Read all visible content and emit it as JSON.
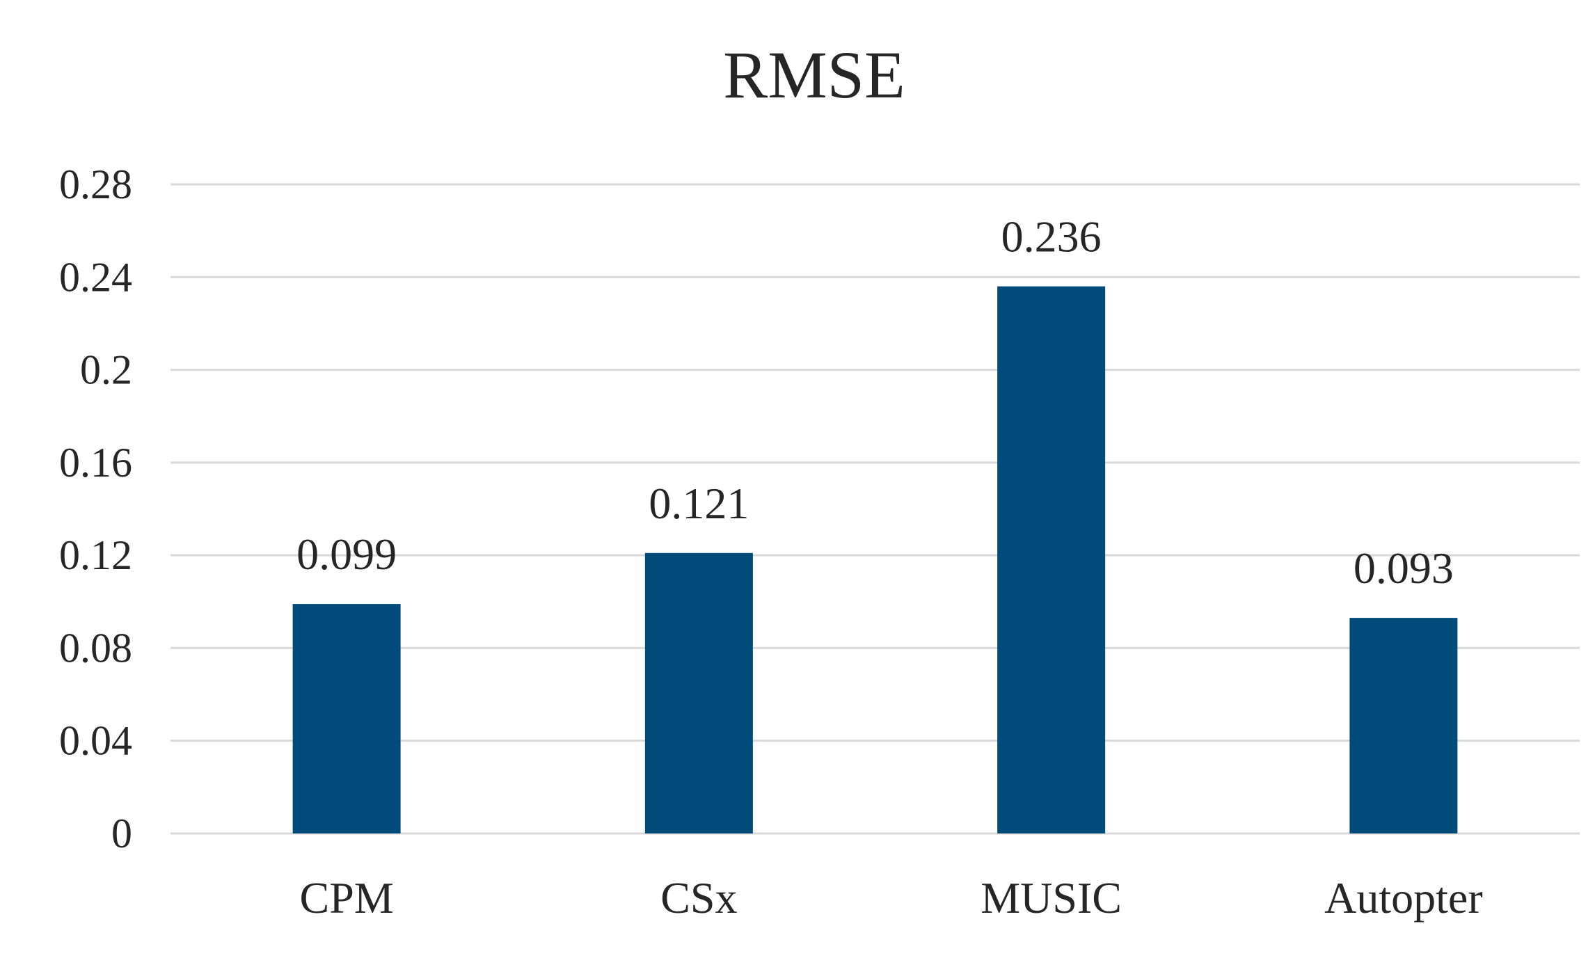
{
  "chart_data": {
    "type": "bar",
    "title": "RMSE",
    "categories": [
      "CPM",
      "CSx",
      "MUSIC",
      "Autopter"
    ],
    "values": [
      0.099,
      0.121,
      0.236,
      0.093
    ],
    "data_labels": [
      "0.099",
      "0.121",
      "0.236",
      "0.093"
    ],
    "yticks": [
      "0",
      "0.04",
      "0.08",
      "0.12",
      "0.16",
      "0.2",
      "0.24",
      "0.28"
    ],
    "ylim": [
      0,
      0.28
    ],
    "xlabel": "",
    "ylabel": "",
    "grid": true,
    "legend": "none",
    "bar_color": "#004b7a"
  }
}
